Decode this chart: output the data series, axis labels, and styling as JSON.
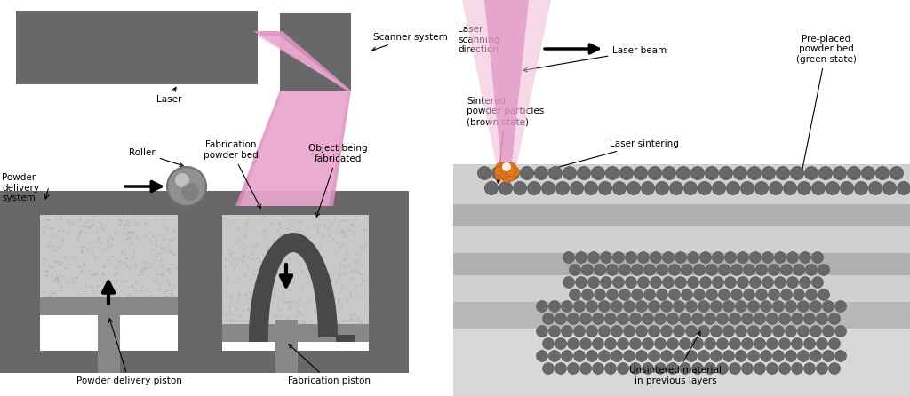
{
  "bg_color": "#ffffff",
  "dark_gray": "#686868",
  "mid_gray": "#888888",
  "light_gray_powder": "#c8c8c8",
  "wall_gray": "#686868",
  "layer_light": "#d0d0d0",
  "layer_mid": "#b8b8b8",
  "layer_dark": "#a0a0a0",
  "pink_outer": "#e090c0",
  "pink_inner": "#f0b8d8",
  "orange_sinter": "#e07820",
  "gold_sinter": "#f0a020",
  "scanner_label": "Scanner system",
  "laser_label": "Laser",
  "roller_label": "Roller",
  "powder_delivery_label": "Powder\ndelivery\nsystem",
  "fab_powder_label": "Fabrication\npowder bed",
  "object_label": "Object being\nfabricated",
  "delivery_piston_label": "Powder delivery piston",
  "fab_piston_label": "Fabrication piston",
  "laser_direction_label": "Laser\nscanning\ndirection",
  "laser_beam_label": "Laser beam",
  "pre_placed_label": "Pre-placed\npowder bed\n(green state)",
  "sintered_label": "Sintered\npowder particles\n(brown state)",
  "laser_sintering_label": "Laser sintering",
  "unsintered_label": "Unsintered material\nin previous layers"
}
